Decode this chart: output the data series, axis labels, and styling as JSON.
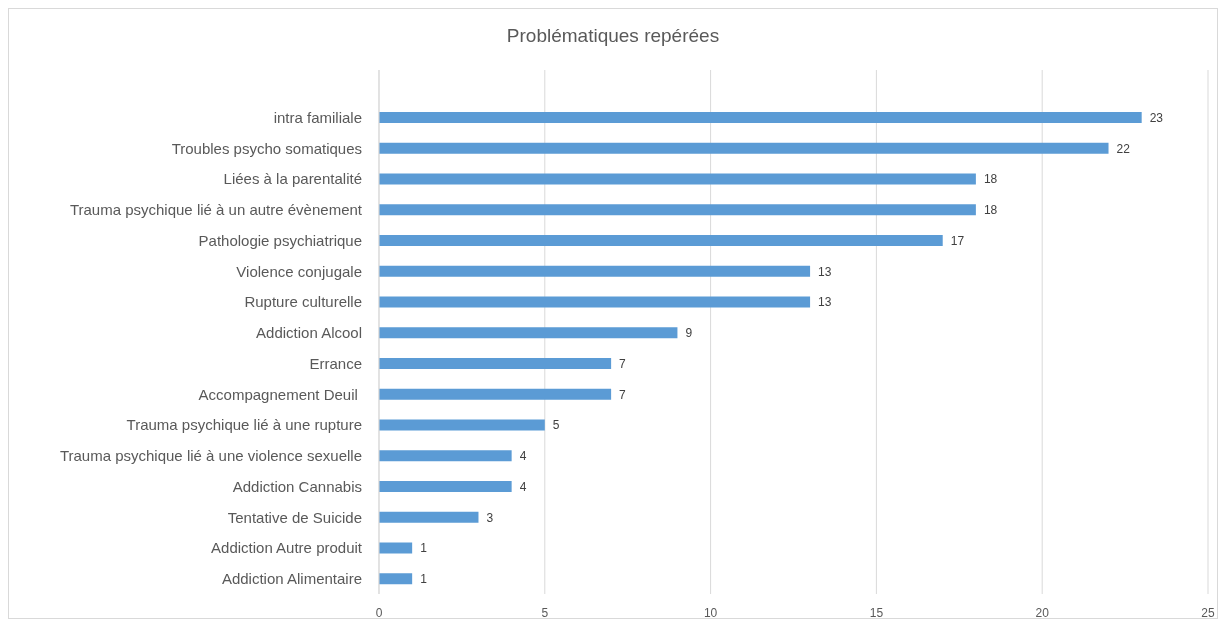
{
  "chart_data": {
    "type": "bar",
    "orientation": "horizontal",
    "title": "Problématiques repérées",
    "categories": [
      "intra familiale",
      "Troubles psycho somatiques",
      "Liées à la parentalité",
      "Trauma psychique lié à un autre évènement",
      "Pathologie psychiatrique",
      "Violence conjugale",
      "Rupture culturelle",
      "Addiction Alcool",
      "Errance",
      "Accompagnement Deuil ",
      "Trauma psychique lié à une rupture",
      "Trauma psychique lié à une violence sexuelle",
      "Addiction Cannabis",
      "Tentative de Suicide",
      "Addiction Autre produit",
      "Addiction Alimentaire"
    ],
    "values": [
      23,
      22,
      18,
      18,
      17,
      13,
      13,
      9,
      7,
      7,
      5,
      4,
      4,
      3,
      1,
      1
    ],
    "color": "#5b9bd5",
    "xlim": [
      0,
      25
    ],
    "xticks": [
      0,
      5,
      10,
      15,
      20,
      25
    ],
    "grid": "x",
    "data_labels": true
  }
}
